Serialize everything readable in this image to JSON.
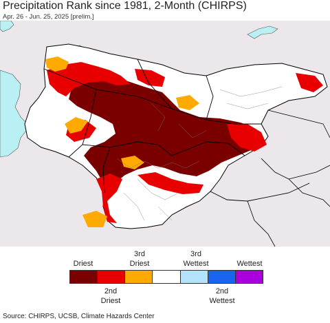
{
  "title": "Precipitation Rank since 1981, 2-Month (CHIRPS)",
  "subtitle": "Apr. 26 - Jun. 25, 2025 [prelim.]",
  "legend": {
    "top_labels": [
      "Driest",
      "3rd\nDriest",
      "3rd\nWettest",
      "Wettest"
    ],
    "bottom_labels": [
      "2nd\nDriest",
      "2nd\nWettest"
    ],
    "categories": [
      {
        "name": "Driest",
        "color": "#7a0000"
      },
      {
        "name": "2nd Driest",
        "color": "#e80000"
      },
      {
        "name": "3rd Driest",
        "color": "#ffaa00"
      },
      {
        "name": "Normal",
        "color": "#ffffff"
      },
      {
        "name": "3rd Wettest",
        "color": "#b3e3fb"
      },
      {
        "name": "2nd Wettest",
        "color": "#1a64f0"
      },
      {
        "name": "Wettest",
        "color": "#aa00e0"
      }
    ]
  },
  "colors": {
    "outside_region": "#ebe7eb",
    "water": "#b8f0f4",
    "land_normal": "#ffffff",
    "border": "#000000"
  },
  "source": "Source: CHIRPS, UCSB, Climate Hazards Center"
}
